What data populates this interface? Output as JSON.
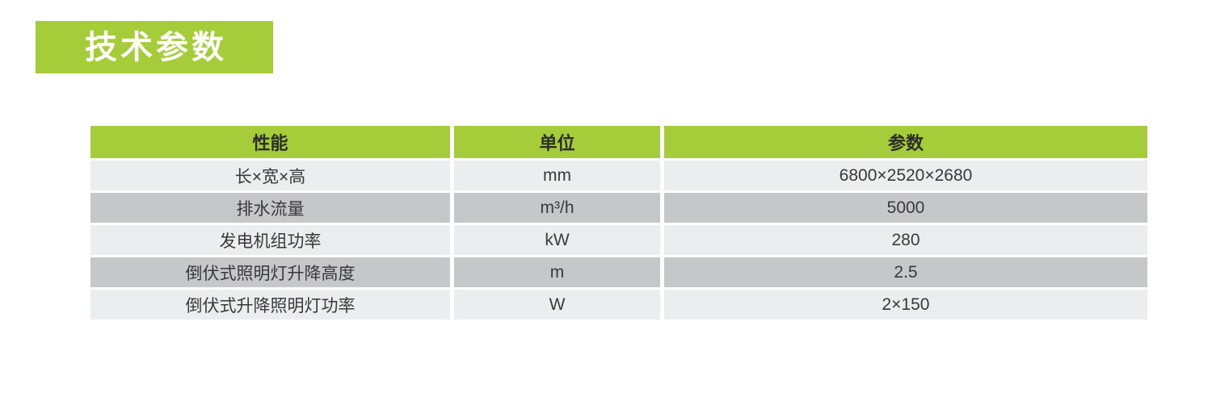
{
  "banner": {
    "title": "技术参数",
    "bg_color": "#a5cc39",
    "text_color": "#ffffff"
  },
  "table": {
    "headers": [
      "性能",
      "单位",
      "参数"
    ],
    "rows": [
      [
        "长×宽×高",
        "mm",
        "6800×2520×2680"
      ],
      [
        "排水流量",
        "m³/h",
        "5000"
      ],
      [
        "发电机组功率",
        "kW",
        "280"
      ],
      [
        "倒伏式照明灯升降高度",
        "m",
        "2.5"
      ],
      [
        "倒伏式升降照明灯功率",
        "W",
        "2×150"
      ]
    ],
    "colors": {
      "header_bg": "#a5cc39",
      "header_text": "#2d2d2d",
      "row_light_bg": "#ebedee",
      "row_dark_bg": "#c6c7c9",
      "cell_text": "#39393c",
      "separator": "#ffffff"
    }
  }
}
